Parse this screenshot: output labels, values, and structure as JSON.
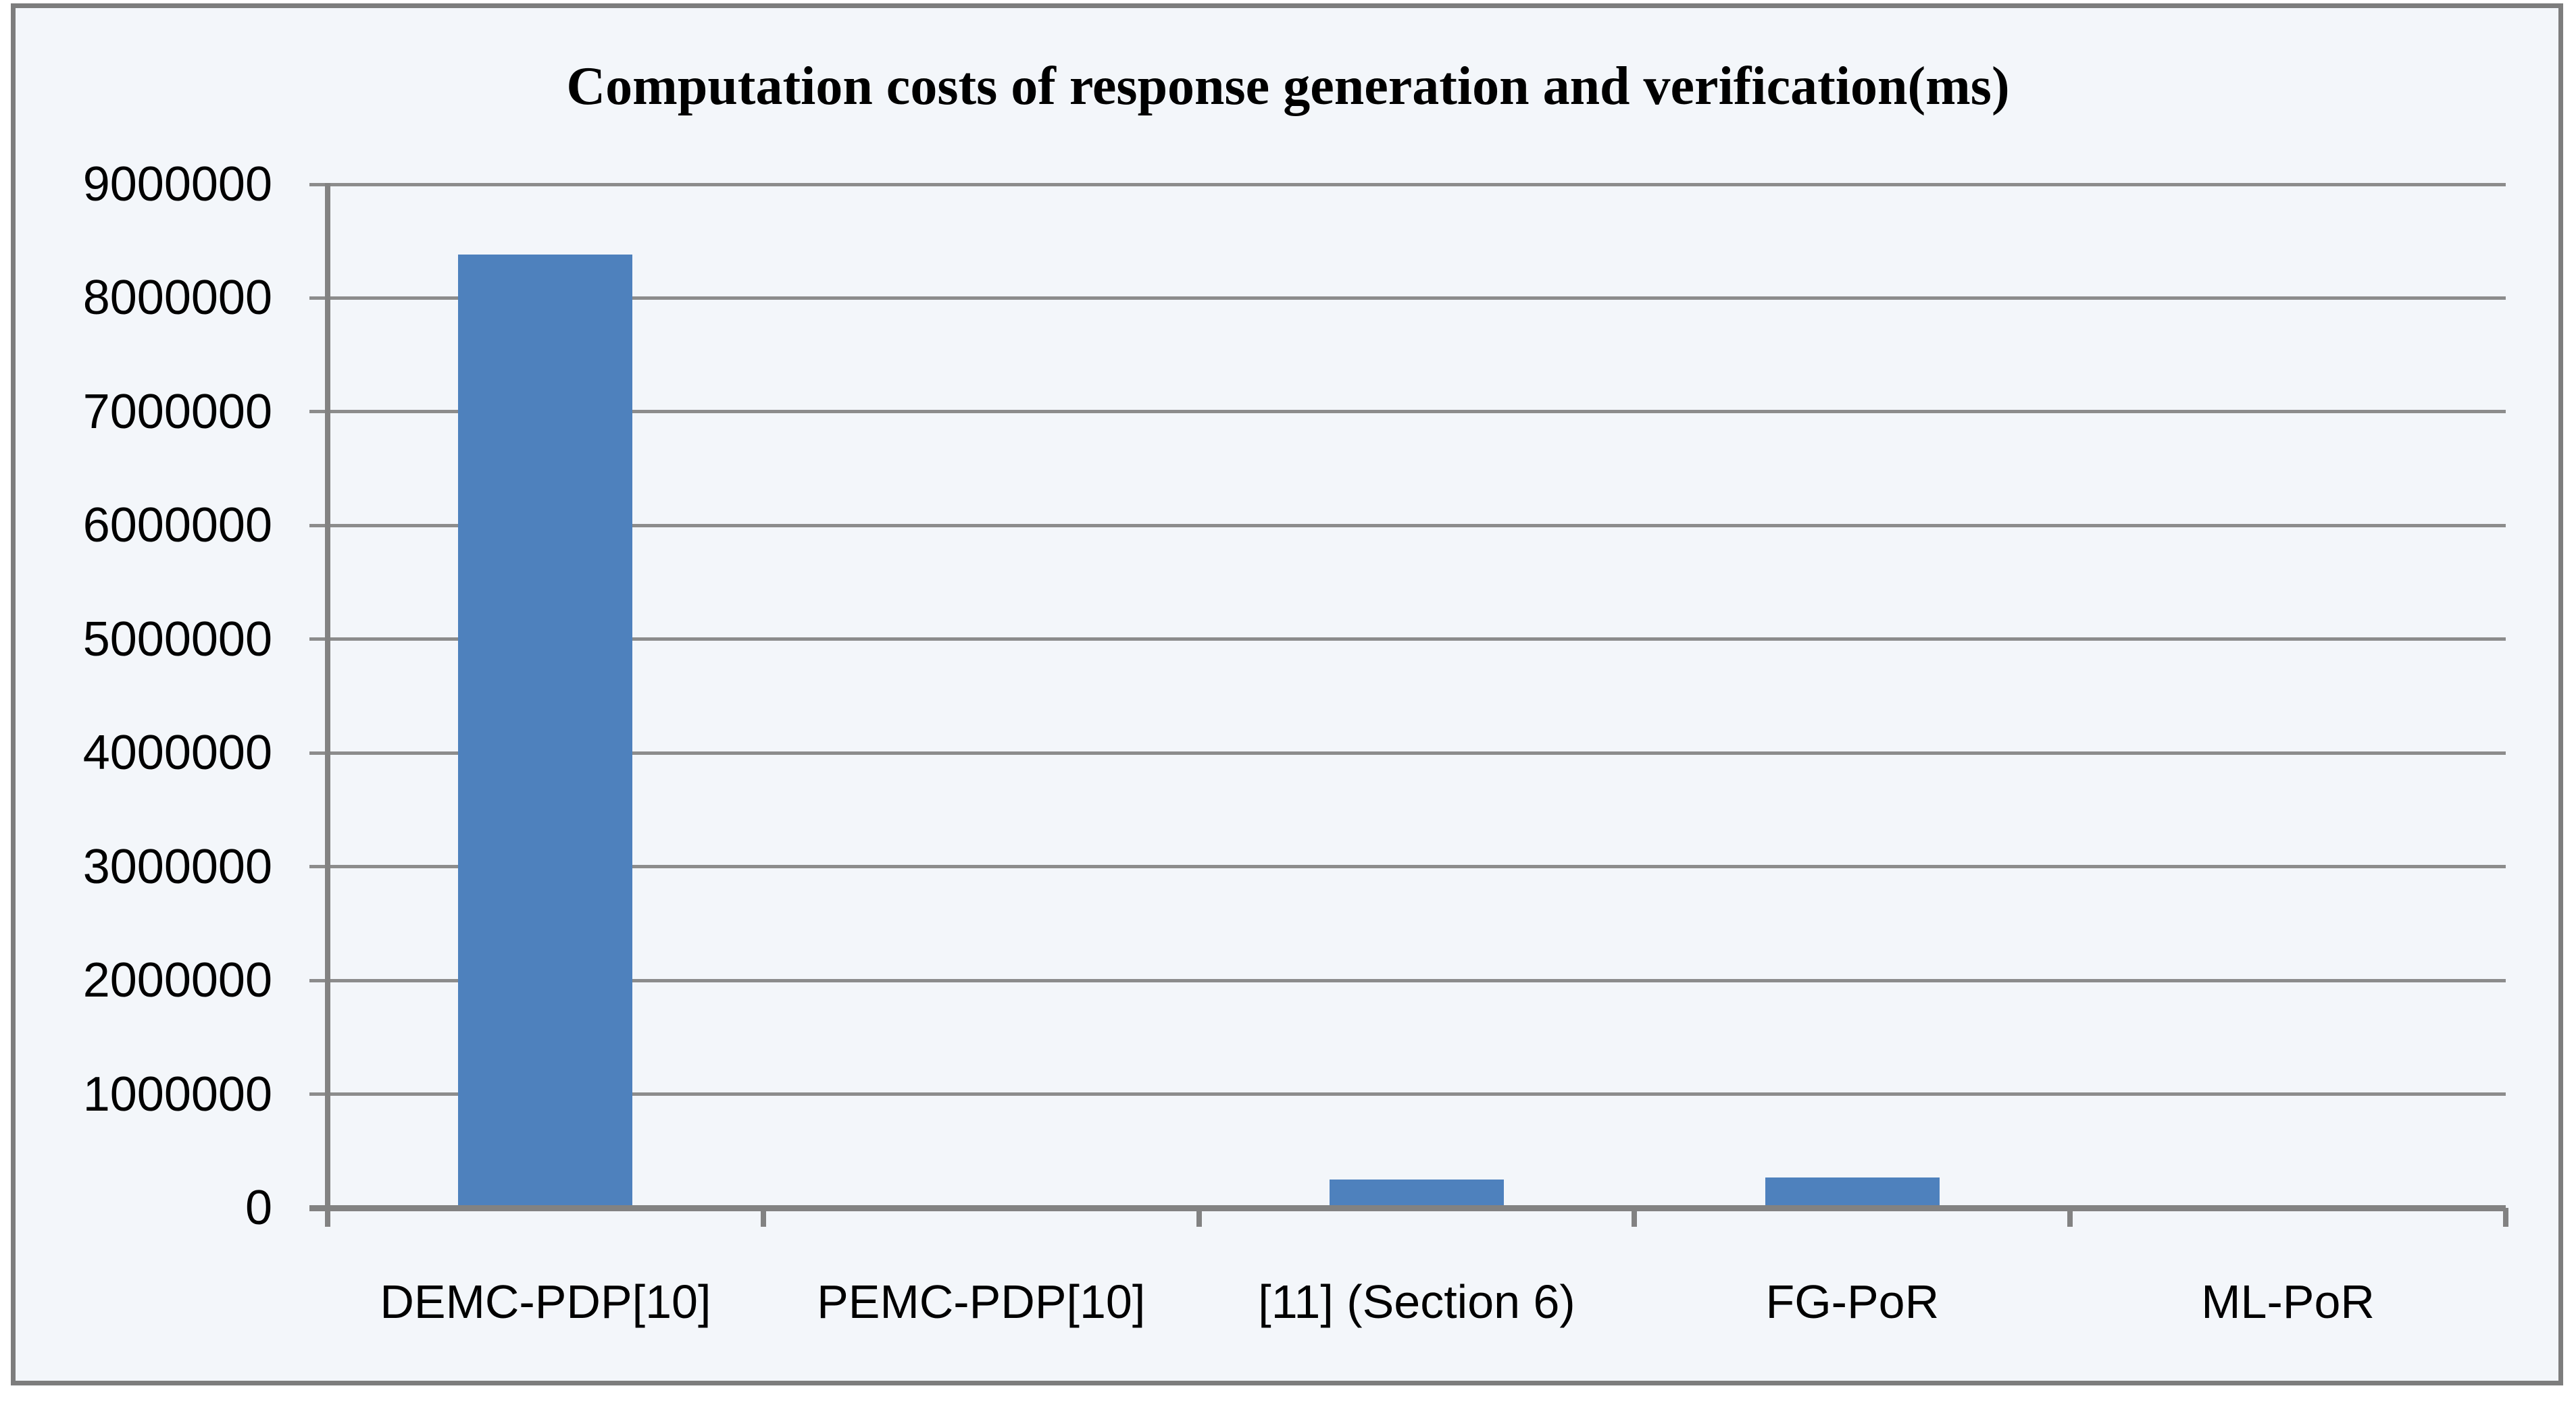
{
  "chart_data": {
    "type": "bar",
    "title": "Computation costs of response generation and verification(ms)",
    "categories": [
      "DEMC-PDP[10]",
      "PEMC-PDP[10]",
      "[11] (Section 6)",
      "FG-PoR",
      "ML-PoR"
    ],
    "values": [
      8380000,
      0,
      250000,
      265000,
      0
    ],
    "xlabel": "",
    "ylabel": "",
    "ylim": [
      0,
      9000000
    ],
    "ytick_step": 1000000,
    "ytick_labels": [
      "0",
      "1000000",
      "2000000",
      "3000000",
      "4000000",
      "5000000",
      "6000000",
      "7000000",
      "8000000",
      "9000000"
    ],
    "grid": true,
    "legend": false,
    "bar_color": "#4e81bd"
  },
  "colors": {
    "background": "#f3f6fa",
    "frame_border": "#7d7d7d",
    "gridline": "#8c8c8c",
    "axis": "#828282",
    "text": "#000000",
    "bar": "#4e81bd"
  }
}
